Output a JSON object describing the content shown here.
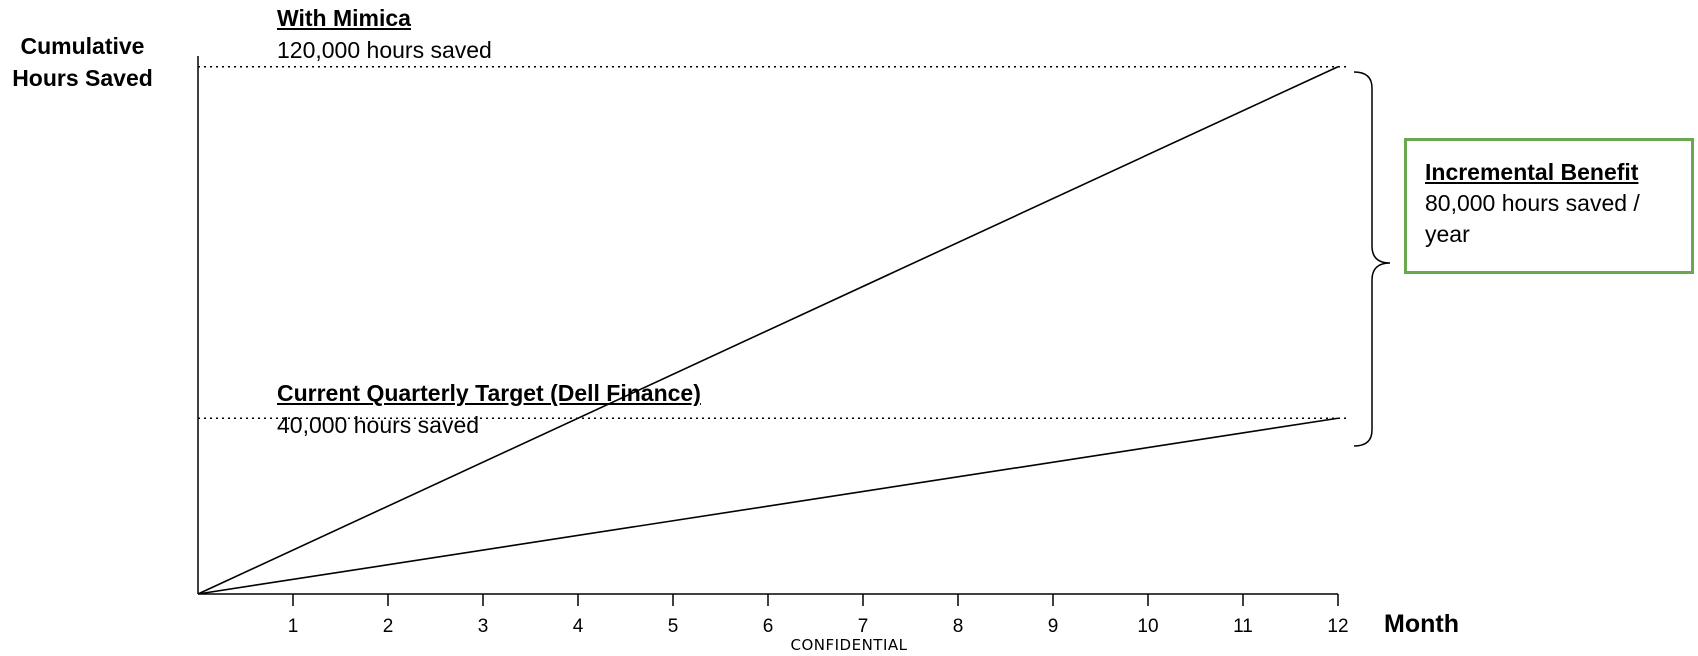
{
  "chart_data": {
    "type": "line",
    "ylabel": "Cumulative Hours Saved",
    "xlabel": "Month",
    "x_ticks": [
      1,
      2,
      3,
      4,
      5,
      6,
      7,
      8,
      9,
      10,
      11,
      12
    ],
    "xlim": [
      0,
      12
    ],
    "ylim": [
      0,
      132000
    ],
    "grid": false,
    "series": [
      {
        "name": "With Mimica",
        "x": [
          0,
          12
        ],
        "y": [
          0,
          120000
        ]
      },
      {
        "name": "Current Quarterly Target (Dell Finance)",
        "x": [
          0,
          12
        ],
        "y": [
          0,
          40000
        ]
      }
    ],
    "annotations": {
      "mimica_title": "With Mimica",
      "mimica_value": "120,000 hours saved",
      "target_title": "Current Quarterly Target (Dell Finance)",
      "target_value": "40,000 hours saved",
      "benefit_title": "Incremental Benefit",
      "benefit_value": "80,000 hours saved / year"
    },
    "reference_levels": [
      120000,
      40000
    ]
  },
  "footer": "CONFIDENTIAL",
  "colors": {
    "line": "#000000",
    "benefit_border": "#6aa84f"
  }
}
